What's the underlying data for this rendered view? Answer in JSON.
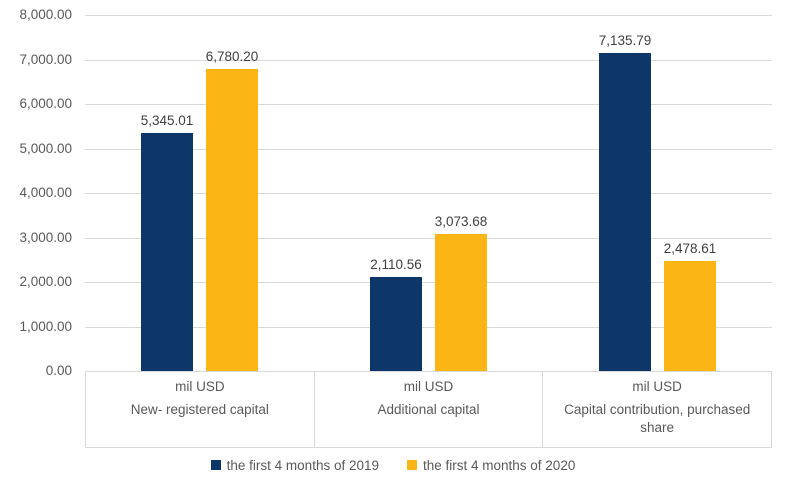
{
  "chart_data": {
    "type": "bar",
    "title": "",
    "xlabel": "",
    "ylabel": "",
    "grid": true,
    "legend_position": "bottom",
    "ylim": [
      0,
      8000
    ],
    "ytick_step": 1000,
    "ytick_labels": [
      "0.00",
      "1,000.00",
      "2,000.00",
      "3,000.00",
      "4,000.00",
      "5,000.00",
      "6,000.00",
      "7,000.00",
      "8,000.00"
    ],
    "categories": [
      {
        "unit_label": "mil USD",
        "label": "New- registered capital"
      },
      {
        "unit_label": "mil USD",
        "label": "Additional capital"
      },
      {
        "unit_label": "mil USD",
        "label": "Capital contribution, purchased share"
      }
    ],
    "series": [
      {
        "name": "the first 4 months of 2019",
        "color": "#0c3768",
        "values": [
          5345.01,
          2110.56,
          7135.79
        ],
        "value_labels": [
          "5,345.01",
          "2,110.56",
          "7,135.79"
        ]
      },
      {
        "name": "the first 4 months of 2020",
        "color": "#fbb616",
        "values": [
          6780.2,
          3073.68,
          2478.61
        ],
        "value_labels": [
          "6,780.20",
          "3,073.68",
          "2,478.61"
        ]
      }
    ],
    "colors": {
      "gridline": "#d9d9d9",
      "axis_text": "#595959",
      "data_label_text": "#404040",
      "background": "#ffffff"
    }
  }
}
